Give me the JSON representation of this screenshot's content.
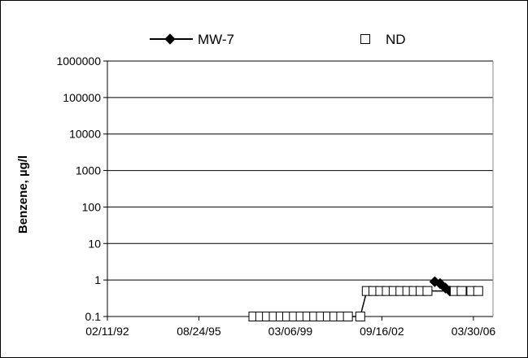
{
  "chart_data": {
    "type": "line",
    "title": "",
    "xlabel": "",
    "ylabel": "Benzene, µg/l",
    "yscale": "log",
    "ylim": [
      0.1,
      1000000
    ],
    "ytick_labels": [
      "1000000",
      "100000",
      "10000",
      "1000",
      "100",
      "10",
      "1",
      "0.1"
    ],
    "yticks": [
      1000000,
      100000,
      10000,
      1000,
      100,
      10,
      1,
      0.1
    ],
    "xlim": [
      "1992-02-11",
      "2006-12-31"
    ],
    "xtick_labels": [
      "02/11/92",
      "08/24/95",
      "03/06/99",
      "09/16/02",
      "03/30/06"
    ],
    "xticks": [
      "1992-02-11",
      "1995-08-24",
      "1999-03-06",
      "2002-09-16",
      "2006-03-30"
    ],
    "grid": true,
    "legend_position": "top",
    "line_color": "#000000",
    "series": [
      {
        "name": "MW-7",
        "marker": "diamond-filled",
        "points": [
          {
            "x": "2004-10-01",
            "y": 0.9
          },
          {
            "x": "2004-12-15",
            "y": 0.8
          },
          {
            "x": "2005-03-01",
            "y": 0.6
          },
          {
            "x": "2005-05-01",
            "y": 0.5
          }
        ]
      },
      {
        "name": "ND",
        "marker": "square-open",
        "points": [
          {
            "x": "1997-10-01",
            "y": 0.1
          },
          {
            "x": "1998-01-05",
            "y": 0.1
          },
          {
            "x": "1998-04-10",
            "y": 0.1
          },
          {
            "x": "1998-07-15",
            "y": 0.1
          },
          {
            "x": "1998-10-20",
            "y": 0.1
          },
          {
            "x": "1999-01-20",
            "y": 0.1
          },
          {
            "x": "1999-04-25",
            "y": 0.1
          },
          {
            "x": "1999-07-30",
            "y": 0.1
          },
          {
            "x": "1999-11-01",
            "y": 0.1
          },
          {
            "x": "2000-02-05",
            "y": 0.1
          },
          {
            "x": "2000-05-10",
            "y": 0.1
          },
          {
            "x": "2000-08-15",
            "y": 0.1
          },
          {
            "x": "2000-11-15",
            "y": 0.1
          },
          {
            "x": "2001-02-20",
            "y": 0.1
          },
          {
            "x": "2001-05-25",
            "y": 0.1
          },
          {
            "x": "2001-11-15",
            "y": 0.1
          },
          {
            "x": "2002-02-15",
            "y": 0.5
          },
          {
            "x": "2002-05-20",
            "y": 0.5
          },
          {
            "x": "2002-08-25",
            "y": 0.5
          },
          {
            "x": "2002-11-25",
            "y": 0.5
          },
          {
            "x": "2003-03-01",
            "y": 0.5
          },
          {
            "x": "2003-06-05",
            "y": 0.5
          },
          {
            "x": "2003-09-10",
            "y": 0.5
          },
          {
            "x": "2003-12-10",
            "y": 0.5
          },
          {
            "x": "2004-03-15",
            "y": 0.5
          },
          {
            "x": "2004-06-20",
            "y": 0.5
          },
          {
            "x": "2005-07-10",
            "y": 0.5
          },
          {
            "x": "2005-10-15",
            "y": 0.5
          },
          {
            "x": "2006-03-01",
            "y": 0.5
          },
          {
            "x": "2006-06-05",
            "y": 0.5
          }
        ]
      }
    ]
  }
}
